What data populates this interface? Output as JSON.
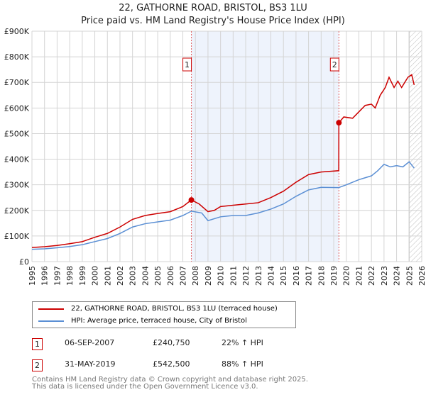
{
  "chart_data": {
    "type": "line",
    "title": "22, GATHORNE ROAD, BRISTOL, BS3 1LU",
    "subtitle": "Price paid vs. HM Land Registry's House Price Index (HPI)",
    "xlim": [
      1995,
      2026
    ],
    "ylim": [
      0,
      900000
    ],
    "x_ticks": [
      "1995",
      "1996",
      "1997",
      "1998",
      "1999",
      "2000",
      "2001",
      "2002",
      "2003",
      "2004",
      "2005",
      "2006",
      "2007",
      "2008",
      "2009",
      "2010",
      "2011",
      "2012",
      "2013",
      "2014",
      "2015",
      "2016",
      "2017",
      "2018",
      "2019",
      "2020",
      "2021",
      "2022",
      "2023",
      "2024",
      "2025",
      "2026"
    ],
    "y_ticks": [
      {
        "v": 0,
        "label": "£0"
      },
      {
        "v": 100000,
        "label": "£100K"
      },
      {
        "v": 200000,
        "label": "£200K"
      },
      {
        "v": 300000,
        "label": "£300K"
      },
      {
        "v": 400000,
        "label": "£400K"
      },
      {
        "v": 500000,
        "label": "£500K"
      },
      {
        "v": 600000,
        "label": "£600K"
      },
      {
        "v": 700000,
        "label": "£700K"
      },
      {
        "v": 800000,
        "label": "£800K"
      },
      {
        "v": 900000,
        "label": "£900K"
      }
    ],
    "grid": true,
    "shaded_range": [
      2007.68,
      2019.41
    ],
    "future_hatch_from": 2025.0,
    "series": [
      {
        "name": "22, GATHORNE ROAD, BRISTOL, BS3 1LU (terraced house)",
        "color": "#cc0000",
        "x": [
          1995,
          1996,
          1997,
          1998,
          1999,
          2000,
          2001,
          2002,
          2003,
          2004,
          2005,
          2006,
          2007,
          2007.68,
          2008.3,
          2009,
          2009.5,
          2010,
          2011,
          2012,
          2013,
          2014,
          2015,
          2016,
          2017,
          2018,
          2019.4,
          2019.41,
          2019.8,
          2020.5,
          2021.5,
          2022,
          2022.3,
          2022.7,
          2023.1,
          2023.4,
          2023.8,
          2024.1,
          2024.4,
          2024.9,
          2025.2,
          2025.4
        ],
        "y": [
          55000,
          58000,
          63000,
          70000,
          78000,
          95000,
          110000,
          135000,
          165000,
          180000,
          188000,
          195000,
          215000,
          240750,
          225000,
          195000,
          200000,
          215000,
          220000,
          225000,
          230000,
          250000,
          275000,
          310000,
          340000,
          350000,
          355000,
          542500,
          565000,
          560000,
          610000,
          615000,
          600000,
          650000,
          680000,
          720000,
          680000,
          705000,
          680000,
          720000,
          730000,
          690000
        ]
      },
      {
        "name": "HPI: Average price, terraced house, City of Bristol",
        "color": "#5b8fd4",
        "x": [
          1995,
          1996,
          1997,
          1998,
          1999,
          2000,
          2001,
          2002,
          2003,
          2004,
          2005,
          2006,
          2007,
          2007.68,
          2008.5,
          2009,
          2010,
          2011,
          2012,
          2013,
          2014,
          2015,
          2016,
          2017,
          2018,
          2019.4,
          2020,
          2021,
          2022,
          2022.5,
          2023,
          2023.5,
          2024,
          2024.5,
          2025,
          2025.4
        ],
        "y": [
          48000,
          50000,
          54000,
          59000,
          66000,
          78000,
          90000,
          110000,
          135000,
          148000,
          155000,
          162000,
          180000,
          197000,
          190000,
          160000,
          175000,
          180000,
          180000,
          190000,
          205000,
          225000,
          255000,
          280000,
          290000,
          289000,
          300000,
          320000,
          335000,
          355000,
          380000,
          370000,
          375000,
          370000,
          390000,
          365000
        ]
      }
    ],
    "markers": [
      {
        "id": "1",
        "x": 2007.68,
        "y": 240750
      },
      {
        "id": "2",
        "x": 2019.41,
        "y": 542500
      }
    ]
  },
  "sales": [
    {
      "id": "1",
      "date": "06-SEP-2007",
      "price": "£240,750",
      "hpi": "22% ↑ HPI"
    },
    {
      "id": "2",
      "date": "31-MAY-2019",
      "price": "£542,500",
      "hpi": "88% ↑ HPI"
    }
  ],
  "footer": {
    "line1": "Contains HM Land Registry data © Crown copyright and database right 2025.",
    "line2": "This data is licensed under the Open Government Licence v3.0."
  }
}
